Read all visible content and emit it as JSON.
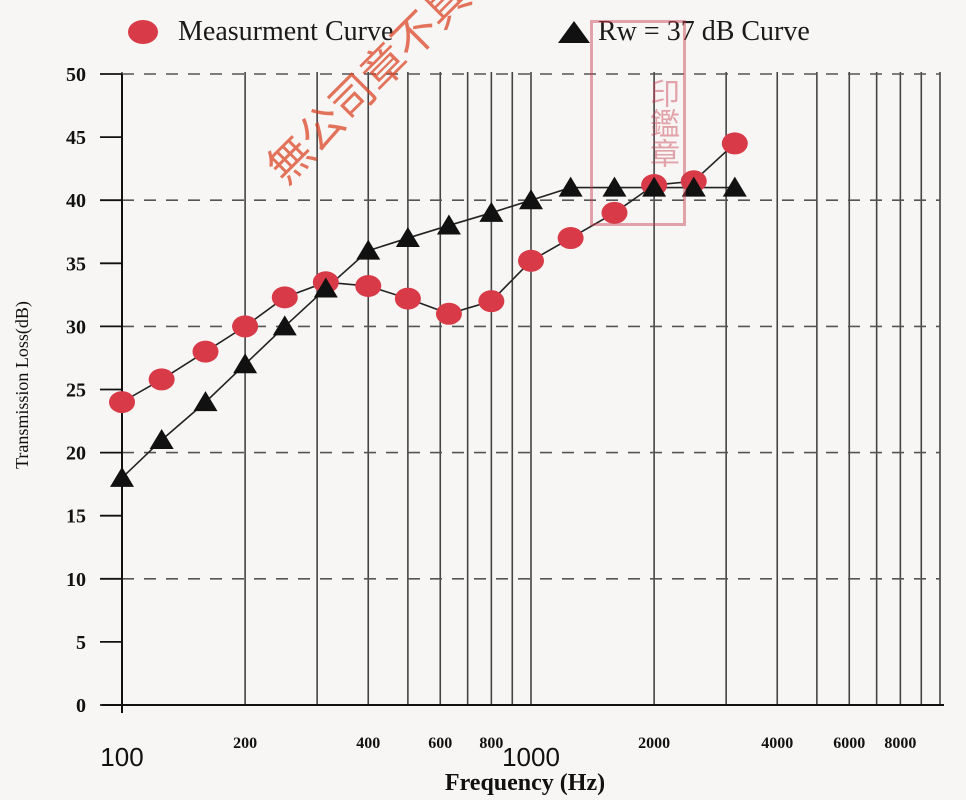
{
  "chart_data": {
    "type": "line",
    "xlabel": "Frequency (Hz)",
    "ylabel": "Transmission Loss(dB)",
    "x_scale": "log",
    "xlim": [
      100,
      10000
    ],
    "ylim": [
      0,
      50
    ],
    "y_ticks": [
      0,
      5,
      10,
      15,
      20,
      25,
      30,
      35,
      40,
      45,
      50
    ],
    "x_tick_labels": [
      {
        "value": 100,
        "label": "100",
        "size": "large"
      },
      {
        "value": 200,
        "label": "200",
        "size": "small"
      },
      {
        "value": 400,
        "label": "400",
        "size": "small"
      },
      {
        "value": 600,
        "label": "600",
        "size": "small"
      },
      {
        "value": 800,
        "label": "800",
        "size": "small"
      },
      {
        "value": 1000,
        "label": "1000",
        "size": "large"
      },
      {
        "value": 2000,
        "label": "2000",
        "size": "small"
      },
      {
        "value": 4000,
        "label": "4000",
        "size": "small"
      },
      {
        "value": 6000,
        "label": "6000",
        "size": "small"
      },
      {
        "value": 8000,
        "label": "8000",
        "size": "small"
      }
    ],
    "vertical_gridlines": [
      100,
      200,
      300,
      400,
      500,
      600,
      700,
      800,
      900,
      1000,
      2000,
      3000,
      4000,
      5000,
      6000,
      7000,
      8000,
      9000,
      10000
    ],
    "horizontal_dashed_gridlines": [
      10,
      20,
      30,
      40,
      50
    ],
    "x": [
      100,
      125,
      160,
      200,
      250,
      315,
      400,
      500,
      630,
      800,
      1000,
      1250,
      1600,
      2000,
      2500,
      3150
    ],
    "series": [
      {
        "name": "Measurment Curve",
        "marker": "circle",
        "color": "#d83a48",
        "values": [
          24,
          25.8,
          28,
          30,
          32.3,
          33.5,
          33.2,
          32.2,
          31,
          32,
          35.2,
          37,
          39,
          41.2,
          41.5,
          44.5
        ]
      },
      {
        "name": "Rw = 37 dB Curve",
        "marker": "triangle",
        "color": "#111111",
        "values": [
          18,
          21,
          24,
          27,
          30,
          33,
          36,
          37,
          38,
          39,
          40,
          41,
          41,
          41,
          41,
          41
        ]
      }
    ]
  },
  "legend": {
    "measurement": "Measurment Curve",
    "reference": "Rw = 37 dB Curve"
  },
  "overlay": {
    "stamp_text": "印鑑章",
    "watermark_text": "無公司章不具認證  本文件僅供工程參考"
  }
}
